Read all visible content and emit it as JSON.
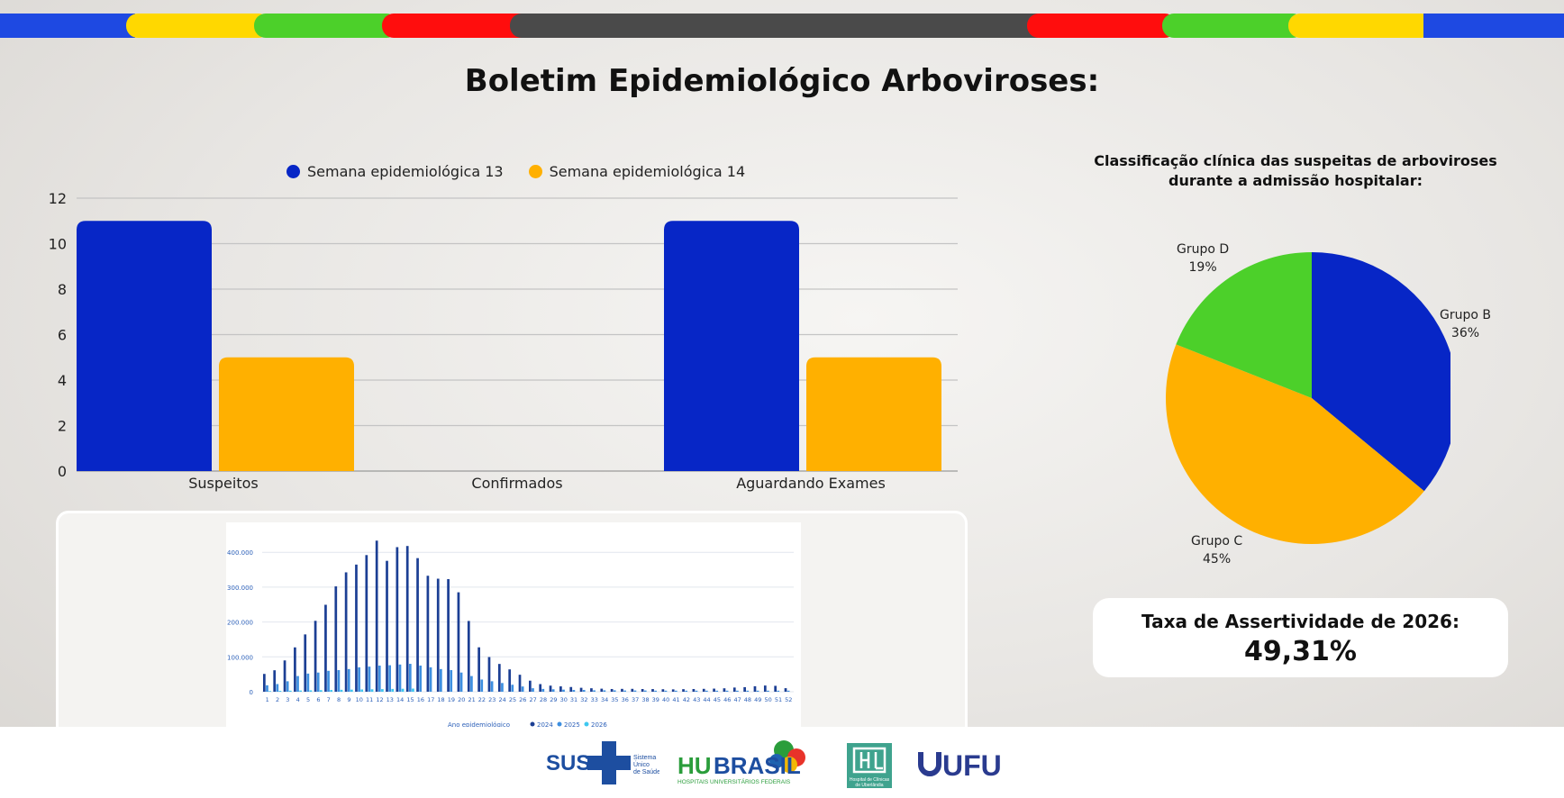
{
  "title": "Boletim Epidemiológico Arboviroses:",
  "colors": {
    "blue": "#0726c6",
    "orange": "#ffb000",
    "green": "#4cd02a",
    "yellow": "#ffd800",
    "red": "#ff0d0d",
    "gray": "#4a4a4a",
    "stripe_blue": "#1e49e2"
  },
  "chart_data": [
    {
      "type": "bar",
      "categories": [
        "Suspeitos",
        "Confirmados",
        "Aguardando Exames"
      ],
      "series": [
        {
          "name": "Semana epidemiológica 13",
          "color": "#0726c6",
          "values": [
            11,
            0,
            11
          ]
        },
        {
          "name": "Semana epidemiológica 14",
          "color": "#ffb000",
          "values": [
            5,
            0,
            5
          ]
        }
      ],
      "ylim": [
        0,
        12
      ],
      "yticks": [
        "0",
        "2",
        "4",
        "6",
        "8",
        "10",
        "12"
      ],
      "grid": true,
      "legend": "top-center"
    },
    {
      "type": "pie",
      "title": "Classificação clínica das suspeitas de arboviroses durante a admissão hospitalar:",
      "slices": [
        {
          "label": "Grupo B",
          "value": 36,
          "display": "36%",
          "color": "#0726c6"
        },
        {
          "label": "Grupo C",
          "value": 45,
          "display": "45%",
          "color": "#ffb000"
        },
        {
          "label": "Grupo D",
          "value": 19,
          "display": "19%",
          "color": "#4cd02a"
        }
      ]
    },
    {
      "type": "bar",
      "xlabel": "Ano epidemiológico",
      "legend_items": [
        "2024",
        "2025",
        "2026"
      ],
      "colors": [
        "#1c3f94",
        "#3d8fe0",
        "#3ec8f0"
      ],
      "yticks": [
        "0",
        "100.000",
        "200.000",
        "300.000",
        "400.000"
      ],
      "ylim": [
        0,
        460000
      ],
      "categories": [
        "1",
        "2",
        "3",
        "4",
        "5",
        "6",
        "7",
        "8",
        "9",
        "10",
        "11",
        "12",
        "13",
        "14",
        "15",
        "16",
        "17",
        "18",
        "19",
        "20",
        "21",
        "22",
        "23",
        "24",
        "25",
        "26",
        "27",
        "28",
        "29",
        "30",
        "31",
        "32",
        "33",
        "34",
        "35",
        "36",
        "37",
        "38",
        "39",
        "40",
        "41",
        "42",
        "43",
        "44",
        "45",
        "46",
        "47",
        "48",
        "49",
        "50",
        "51",
        "52"
      ],
      "series": [
        {
          "name": "2024",
          "values": [
            51083,
            61534,
            89813,
            127225,
            164445,
            203446,
            249480,
            302288,
            342519,
            364790,
            392052,
            433513,
            375555,
            414834,
            418126,
            383326,
            332741,
            324277,
            323143,
            285290,
            203053,
            127397,
            99447,
            79678,
            64100,
            48698,
            31736,
            21885,
            17466,
            15348,
            13538,
            11313,
            9938,
            8762,
            7803,
            8188,
            8283,
            7730,
            7642,
            7212,
            6848,
            7382,
            7783,
            8272,
            8890,
            9813,
            11995,
            13088,
            15737,
            17768,
            16901,
            10133
          ]
        },
        {
          "name": "2025",
          "values": [
            18446,
            22000,
            30000,
            45000,
            52000,
            55000,
            60000,
            62000,
            65000,
            70000,
            72000,
            75000,
            76000,
            78000,
            80000,
            75000,
            70000,
            65000,
            62000,
            55000,
            45000,
            35000,
            30000,
            25000,
            20000,
            15000,
            10000,
            8000,
            7000,
            6000,
            5000,
            5000,
            4000,
            4000,
            4000,
            3500,
            3500,
            3500,
            3000,
            3000,
            3000,
            3000,
            3000,
            3000,
            3000,
            3000,
            3000,
            3000,
            3000,
            3000,
            3000,
            3000
          ]
        },
        {
          "name": "2026",
          "values": [
            2000,
            2500,
            3000,
            3500,
            4000,
            4500,
            5000,
            5500,
            6000,
            6500,
            7000,
            7500,
            8000,
            8500,
            9000,
            0,
            0,
            0,
            0,
            0,
            0,
            0,
            0,
            0,
            0,
            0,
            0,
            0,
            0,
            0,
            0,
            0,
            0,
            0,
            0,
            0,
            0,
            0,
            0,
            0,
            0,
            0,
            0,
            0,
            0,
            0,
            0,
            0,
            0,
            0,
            0,
            0
          ]
        }
      ]
    }
  ],
  "rate": {
    "label": "Taxa de Assertividade de 2026:",
    "value": "49,31%"
  },
  "logos": {
    "sus": "SUS",
    "sus_sub": [
      "Sistema",
      "Único",
      "de Saúde"
    ],
    "hubrasil": "HUBRASIL",
    "hubrasil_sub": "HOSPITAIS UNIVERSITÁRIOS FEDERAIS",
    "hc": "Hospital de Clínicas de Uberlândia",
    "ufu": "UFU"
  }
}
